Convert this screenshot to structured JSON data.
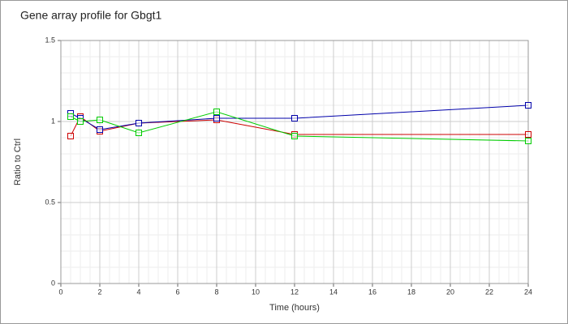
{
  "chart_data": {
    "type": "line",
    "title": "Gene array profile for Gbgt1",
    "x_label": "Time (hours)",
    "y_label": "Ratio to Ctrl",
    "x": [
      0.5,
      1,
      2,
      4,
      8,
      12,
      24
    ],
    "series": [
      {
        "color": "#cc0000",
        "values": [
          0.91,
          1.03,
          0.94,
          0.99,
          1.01,
          0.92,
          0.92
        ]
      },
      {
        "color": "#0000aa",
        "values": [
          1.05,
          1.02,
          0.95,
          0.99,
          1.02,
          1.02,
          1.1
        ]
      },
      {
        "color": "#00cc00",
        "values": [
          1.03,
          1.0,
          1.01,
          0.93,
          1.06,
          0.91,
          0.88
        ]
      }
    ],
    "xlim": [
      0,
      24
    ],
    "xticks": [
      0,
      2,
      4,
      6,
      8,
      10,
      12,
      14,
      16,
      18,
      20,
      22,
      24
    ],
    "ylim": [
      0,
      1.5
    ],
    "yticks": [
      0,
      0.5,
      1,
      1.5
    ],
    "grid": true
  }
}
